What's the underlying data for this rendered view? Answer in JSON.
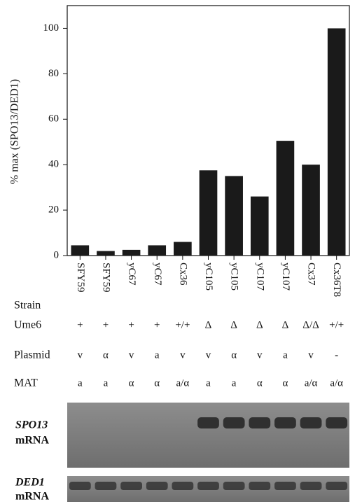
{
  "chart_data": {
    "type": "bar",
    "y_label": "% max (SPO13/DED1)",
    "categories": [
      "SFY59",
      "SFY59",
      "yC67",
      "yC67",
      "Cx36",
      "yC105",
      "yC105",
      "yC107",
      "yC107",
      "Cx37",
      "Cx36T8"
    ],
    "values": [
      4.5,
      2,
      2.5,
      4.5,
      6,
      37.5,
      35,
      26,
      50.5,
      40,
      100
    ],
    "color": "#1a1a1a",
    "ylim": [
      0,
      110
    ],
    "yticks": [
      0,
      20,
      40,
      60,
      80,
      100
    ]
  },
  "table": {
    "row_labels": [
      "Strain",
      "Ume6",
      "Plasmid",
      "MAT"
    ],
    "rows": [
      [
        "+",
        "+",
        "+",
        "+",
        "+/+",
        "Δ",
        "Δ",
        "Δ",
        "Δ",
        "Δ/Δ",
        "+/+"
      ],
      [
        "v",
        "α",
        "v",
        "a",
        "v",
        "v",
        "α",
        "v",
        "a",
        "v",
        "-"
      ],
      [
        "a",
        "a",
        "α",
        "α",
        "a/α",
        "a",
        "a",
        "α",
        "α",
        "a/α",
        "a/α"
      ]
    ]
  },
  "blots": [
    {
      "gene": "SPO13",
      "label": "mRNA"
    },
    {
      "gene": "DED1",
      "label": "mRNA"
    }
  ]
}
